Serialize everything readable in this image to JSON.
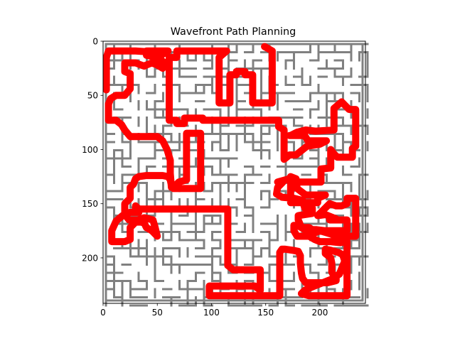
{
  "chart_data": {
    "type": "image_with_path",
    "title": "Wavefront Path Planning",
    "xlabel": "",
    "ylabel": "",
    "xlim": [
      0,
      242
    ],
    "ylim": [
      242,
      0
    ],
    "xticks": [
      0,
      50,
      100,
      150,
      200
    ],
    "yticks": [
      0,
      50,
      100,
      150,
      200
    ],
    "grid": false,
    "colors": {
      "path": "#ff0000",
      "walls": "#808080",
      "background": "#ffffff"
    },
    "start": [
      149,
      5
    ],
    "goal": [
      183,
      233
    ],
    "path": [
      [
        149,
        5
      ],
      [
        156,
        9
      ],
      [
        156,
        57
      ],
      [
        138,
        57
      ],
      [
        138,
        31
      ],
      [
        131,
        31
      ],
      [
        131,
        28
      ],
      [
        123,
        28
      ],
      [
        123,
        31
      ],
      [
        117,
        31
      ],
      [
        117,
        31
      ],
      [
        117,
        57
      ],
      [
        107,
        57
      ],
      [
        107,
        15
      ],
      [
        114,
        9
      ],
      [
        68,
        9
      ],
      [
        68,
        15
      ],
      [
        61,
        15
      ],
      [
        61,
        73
      ],
      [
        68,
        73
      ],
      [
        68,
        76
      ],
      [
        75,
        76
      ],
      [
        75,
        71
      ],
      [
        92,
        71
      ],
      [
        92,
        73
      ],
      [
        162,
        73
      ],
      [
        162,
        79
      ],
      [
        167,
        82
      ],
      [
        167,
        109
      ],
      [
        172,
        105
      ],
      [
        178,
        105
      ],
      [
        188,
        97
      ],
      [
        200,
        95
      ],
      [
        206,
        92
      ],
      [
        189,
        92
      ],
      [
        186,
        87
      ],
      [
        172,
        87
      ],
      [
        173,
        87
      ],
      [
        179,
        84
      ],
      [
        187,
        82
      ],
      [
        196,
        83
      ],
      [
        213,
        82
      ],
      [
        213,
        62
      ],
      [
        220,
        56
      ],
      [
        227,
        63
      ],
      [
        233,
        63
      ],
      [
        233,
        70
      ],
      [
        233,
        97
      ],
      [
        230,
        99
      ],
      [
        230,
        107
      ],
      [
        216,
        107
      ],
      [
        213,
        104
      ],
      [
        210,
        100
      ],
      [
        210,
        117
      ],
      [
        201,
        118
      ],
      [
        201,
        130
      ],
      [
        173,
        130
      ],
      [
        173,
        149
      ],
      [
        198,
        149
      ],
      [
        198,
        145
      ],
      [
        205,
        142
      ],
      [
        187,
        142
      ],
      [
        179,
        136
      ],
      [
        178,
        127
      ],
      [
        173,
        125
      ],
      [
        172,
        127
      ],
      [
        161,
        130
      ],
      [
        166,
        130
      ],
      [
        164,
        132
      ],
      [
        161,
        135
      ],
      [
        160,
        141
      ],
      [
        165,
        144
      ],
      [
        176,
        145
      ],
      [
        184,
        147
      ],
      [
        186,
        154
      ],
      [
        193,
        154
      ],
      [
        193,
        159
      ],
      [
        186,
        160
      ],
      [
        180,
        161
      ],
      [
        180,
        165
      ],
      [
        183,
        172
      ],
      [
        190,
        172
      ],
      [
        193,
        174
      ],
      [
        197,
        174
      ],
      [
        205,
        175
      ],
      [
        225,
        175
      ],
      [
        225,
        165
      ],
      [
        209,
        165
      ],
      [
        215,
        164
      ],
      [
        205,
        160
      ],
      [
        198,
        161
      ],
      [
        204,
        155
      ],
      [
        209,
        150
      ],
      [
        215,
        152
      ],
      [
        220,
        152
      ],
      [
        225,
        150
      ],
      [
        225,
        145
      ],
      [
        233,
        145
      ],
      [
        233,
        180
      ],
      [
        220,
        180
      ],
      [
        215,
        180
      ],
      [
        210,
        178
      ],
      [
        200,
        175
      ],
      [
        193,
        178
      ],
      [
        181,
        171
      ],
      [
        176,
        170
      ],
      [
        176,
        175
      ],
      [
        179,
        180
      ],
      [
        190,
        180
      ],
      [
        195,
        183
      ],
      [
        200,
        185
      ],
      [
        210,
        185
      ],
      [
        219,
        186
      ],
      [
        225,
        185
      ],
      [
        225,
        190
      ],
      [
        225,
        215
      ],
      [
        225,
        235
      ],
      [
        210,
        235
      ],
      [
        190,
        235
      ],
      [
        183,
        233
      ],
      [
        186,
        230
      ],
      [
        190,
        228
      ],
      [
        195,
        226
      ],
      [
        205,
        222
      ],
      [
        210,
        220
      ],
      [
        215,
        217
      ],
      [
        218,
        215
      ],
      [
        220,
        210
      ],
      [
        223,
        203
      ],
      [
        221,
        197
      ],
      [
        217,
        195
      ],
      [
        210,
        193
      ],
      [
        205,
        192
      ],
      [
        205,
        196
      ],
      [
        210,
        200
      ],
      [
        211,
        205
      ],
      [
        211,
        213
      ],
      [
        213,
        217
      ],
      [
        215,
        219
      ],
      [
        215,
        221
      ],
      [
        207,
        223
      ],
      [
        200,
        223
      ],
      [
        195,
        223
      ],
      [
        187,
        223
      ],
      [
        184,
        219
      ],
      [
        183,
        214
      ],
      [
        182,
        205
      ],
      [
        182,
        198
      ],
      [
        180,
        194
      ],
      [
        175,
        193
      ],
      [
        168,
        192
      ],
      [
        165,
        192
      ],
      [
        163,
        195
      ],
      [
        163,
        210
      ],
      [
        163,
        225
      ],
      [
        163,
        235
      ],
      [
        155,
        235
      ],
      [
        147,
        235
      ],
      [
        140,
        235
      ],
      [
        130,
        235
      ],
      [
        110,
        235
      ],
      [
        98,
        235
      ],
      [
        98,
        230
      ],
      [
        98,
        226
      ],
      [
        108,
        226
      ],
      [
        120,
        226
      ],
      [
        132,
        226
      ],
      [
        140,
        226
      ],
      [
        145,
        230
      ],
      [
        145,
        218
      ],
      [
        145,
        211
      ],
      [
        130,
        211
      ],
      [
        120,
        211
      ],
      [
        115,
        207
      ],
      [
        115,
        200
      ],
      [
        115,
        185
      ],
      [
        115,
        170
      ],
      [
        115,
        155
      ],
      [
        105,
        155
      ],
      [
        92,
        155
      ],
      [
        78,
        155
      ],
      [
        63,
        155
      ],
      [
        48,
        155
      ],
      [
        33,
        155
      ],
      [
        30,
        152
      ],
      [
        30,
        155
      ],
      [
        33,
        158
      ],
      [
        25,
        158
      ],
      [
        18,
        161
      ],
      [
        12,
        166
      ],
      [
        8,
        175
      ],
      [
        8,
        185
      ],
      [
        20,
        185
      ],
      [
        25,
        183
      ],
      [
        25,
        178
      ],
      [
        25,
        172
      ],
      [
        27,
        170
      ],
      [
        30,
        167
      ],
      [
        35,
        167
      ],
      [
        38,
        168
      ],
      [
        40,
        172
      ],
      [
        45,
        175
      ],
      [
        50,
        180
      ],
      [
        48,
        172
      ],
      [
        46,
        165
      ],
      [
        38,
        163
      ],
      [
        32,
        165
      ],
      [
        24,
        165
      ],
      [
        20,
        160
      ],
      [
        20,
        150
      ],
      [
        25,
        145
      ],
      [
        25,
        140
      ],
      [
        25,
        135
      ],
      [
        28,
        132
      ],
      [
        30,
        127
      ],
      [
        33,
        125
      ],
      [
        40,
        124
      ],
      [
        50,
        124
      ],
      [
        55,
        124
      ],
      [
        60,
        125
      ],
      [
        62,
        128
      ],
      [
        63,
        133
      ],
      [
        65,
        136
      ],
      [
        75,
        136
      ],
      [
        85,
        136
      ],
      [
        90,
        136
      ],
      [
        90,
        128
      ],
      [
        90,
        115
      ],
      [
        90,
        100
      ],
      [
        90,
        85
      ],
      [
        83,
        85
      ],
      [
        77,
        85
      ],
      [
        77,
        95
      ],
      [
        77,
        110
      ],
      [
        77,
        128
      ],
      [
        70,
        130
      ],
      [
        65,
        135
      ],
      [
        63,
        135
      ],
      [
        62,
        122
      ],
      [
        62,
        110
      ],
      [
        59,
        100
      ],
      [
        55,
        92
      ],
      [
        50,
        88
      ],
      [
        40,
        88
      ],
      [
        32,
        88
      ],
      [
        25,
        88
      ],
      [
        20,
        82
      ],
      [
        17,
        77
      ],
      [
        12,
        73
      ],
      [
        5,
        73
      ],
      [
        5,
        65
      ],
      [
        5,
        58
      ],
      [
        7,
        53
      ],
      [
        12,
        50
      ],
      [
        20,
        50
      ],
      [
        25,
        44
      ],
      [
        25,
        38
      ],
      [
        25,
        30
      ],
      [
        20,
        28
      ],
      [
        20,
        20
      ],
      [
        30,
        20
      ],
      [
        35,
        22
      ],
      [
        38,
        23
      ],
      [
        40,
        22
      ],
      [
        45,
        20
      ],
      [
        50,
        22
      ],
      [
        55,
        25
      ],
      [
        57,
        20
      ],
      [
        50,
        15
      ],
      [
        40,
        13
      ],
      [
        40,
        9
      ],
      [
        50,
        9
      ],
      [
        55,
        9
      ],
      [
        60,
        9
      ],
      [
        55,
        12
      ],
      [
        45,
        10
      ],
      [
        30,
        9
      ],
      [
        20,
        9
      ],
      [
        10,
        9
      ],
      [
        5,
        9
      ],
      [
        3,
        15
      ],
      [
        3,
        25
      ],
      [
        3,
        35
      ],
      [
        3,
        45
      ]
    ]
  }
}
